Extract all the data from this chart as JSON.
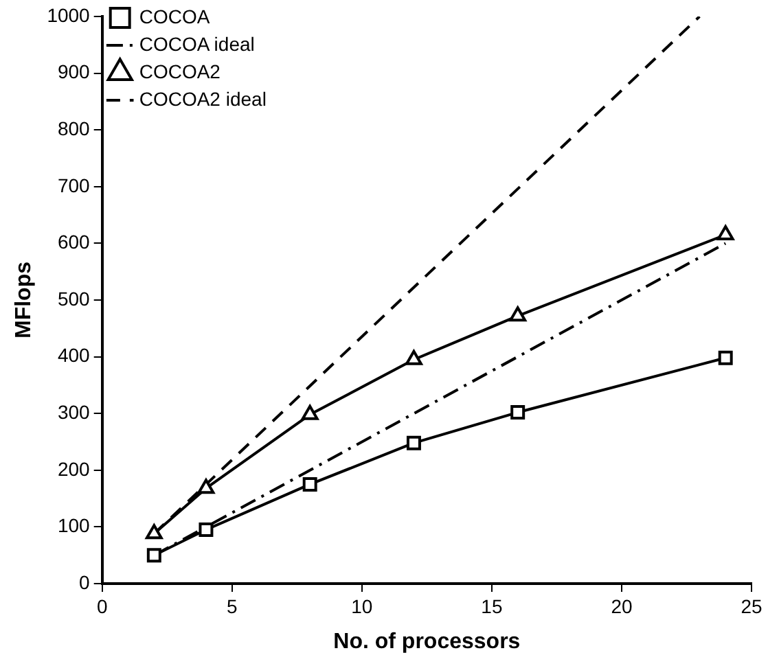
{
  "chart_data": {
    "type": "line",
    "xlabel": "No. of processors",
    "ylabel": "MFlops",
    "xlim": [
      0,
      25
    ],
    "xticks": [
      0,
      5,
      10,
      15,
      20,
      25
    ],
    "ylim": [
      0,
      1000
    ],
    "yticks": [
      0,
      100,
      200,
      300,
      400,
      500,
      600,
      700,
      800,
      900,
      1000
    ],
    "grid": false,
    "legend": "top left",
    "series": [
      {
        "name": "COCOA",
        "color": "#000000",
        "x": [
          2,
          4,
          8,
          12,
          16,
          24
        ],
        "values": [
          50,
          95,
          175,
          248,
          302,
          398
        ],
        "marker": "square",
        "line_style": "solid"
      },
      {
        "name": "COCOA ideal",
        "color": "#000000",
        "x": [
          2,
          24
        ],
        "values": [
          50,
          600
        ],
        "marker": "none",
        "line_style": "dashdot"
      },
      {
        "name": "COCOA2",
        "color": "#000000",
        "x": [
          2,
          4,
          8,
          12,
          16,
          24
        ],
        "values": [
          88,
          168,
          298,
          395,
          472,
          615
        ],
        "marker": "triangle",
        "line_style": "solid"
      },
      {
        "name": "COCOA2 ideal",
        "color": "#000000",
        "x": [
          2,
          23
        ],
        "values": [
          88,
          1000
        ],
        "marker": "none",
        "line_style": "dashed"
      }
    ]
  }
}
